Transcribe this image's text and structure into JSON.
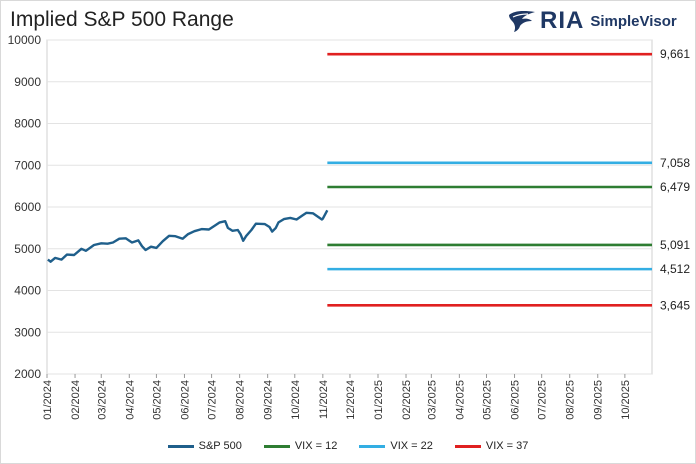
{
  "header": {
    "title": "Implied S&P 500 Range",
    "logo_main": "RIA",
    "logo_sub": "SimpleVisor"
  },
  "colors": {
    "sp500": "#1f5f8b",
    "vix12": "#2e7d32",
    "vix22": "#33aee3",
    "vix37": "#e02020",
    "logo": "#1f3864"
  },
  "chart_data": {
    "type": "line",
    "title": "Implied S&P 500 Range",
    "ylim": [
      2000,
      10000
    ],
    "yticks": [
      2000,
      3000,
      4000,
      5000,
      6000,
      7000,
      8000,
      9000,
      10000
    ],
    "ytick_labels": [
      "2000",
      "3000",
      "4000",
      "5000",
      "6000",
      "7000",
      "8000",
      "9000",
      "10000"
    ],
    "xlim": [
      "2024-01-01",
      "2025-10-31"
    ],
    "xtick_labels": [
      "01/2024",
      "02/2024",
      "03/2024",
      "04/2024",
      "05/2024",
      "06/2024",
      "07/2024",
      "08/2024",
      "09/2024",
      "10/2024",
      "11/2024",
      "12/2024",
      "01/2025",
      "02/2025",
      "03/2025",
      "04/2025",
      "05/2025",
      "06/2025",
      "07/2025",
      "08/2025",
      "09/2025",
      "10/2025"
    ],
    "grid": "horizontal",
    "legend": "bottom",
    "series": [
      {
        "name": "S&P 500",
        "kind": "line",
        "x": [
          "2024-01-02",
          "2024-01-05",
          "2024-01-10",
          "2024-01-17",
          "2024-01-23",
          "2024-01-31",
          "2024-02-08",
          "2024-02-13",
          "2024-02-22",
          "2024-03-01",
          "2024-03-08",
          "2024-03-14",
          "2024-03-21",
          "2024-03-28",
          "2024-04-04",
          "2024-04-11",
          "2024-04-15",
          "2024-04-19",
          "2024-04-25",
          "2024-05-01",
          "2024-05-08",
          "2024-05-15",
          "2024-05-22",
          "2024-05-30",
          "2024-06-05",
          "2024-06-12",
          "2024-06-20",
          "2024-06-28",
          "2024-07-05",
          "2024-07-10",
          "2024-07-16",
          "2024-07-19",
          "2024-07-24",
          "2024-07-30",
          "2024-08-02",
          "2024-08-05",
          "2024-08-08",
          "2024-08-14",
          "2024-08-19",
          "2024-08-29",
          "2024-09-03",
          "2024-09-06",
          "2024-09-10",
          "2024-09-13",
          "2024-09-19",
          "2024-09-26",
          "2024-10-03",
          "2024-10-09",
          "2024-10-14",
          "2024-10-21",
          "2024-10-31",
          "2024-11-01",
          "2024-11-06"
        ],
        "y": [
          4740,
          4690,
          4780,
          4740,
          4860,
          4850,
          5000,
          4950,
          5090,
          5130,
          5120,
          5150,
          5240,
          5250,
          5150,
          5200,
          5060,
          4970,
          5050,
          5020,
          5180,
          5310,
          5300,
          5240,
          5350,
          5420,
          5470,
          5460,
          5560,
          5630,
          5660,
          5500,
          5430,
          5450,
          5350,
          5190,
          5300,
          5450,
          5600,
          5590,
          5520,
          5410,
          5500,
          5630,
          5710,
          5740,
          5700,
          5790,
          5860,
          5850,
          5700,
          5720,
          5920
        ]
      },
      {
        "name": "VIX = 12",
        "kind": "band",
        "x_start": "2024-11-06",
        "x_end": "2025-10-31",
        "low": 5091,
        "high": 6479,
        "low_label": "5,091",
        "high_label": "6,479"
      },
      {
        "name": "VIX = 22",
        "kind": "band",
        "x_start": "2024-11-06",
        "x_end": "2025-10-31",
        "low": 4512,
        "high": 7058,
        "low_label": "4,512",
        "high_label": "7,058"
      },
      {
        "name": "VIX = 37",
        "kind": "band",
        "x_start": "2024-11-06",
        "x_end": "2025-10-31",
        "low": 3645,
        "high": 9661,
        "low_label": "3,645",
        "high_label": "9,661"
      }
    ]
  }
}
